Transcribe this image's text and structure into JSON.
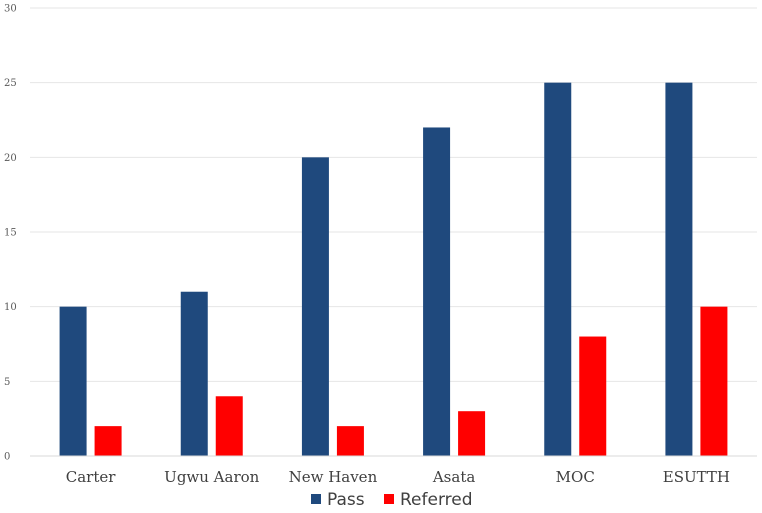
{
  "chart_data": {
    "type": "bar",
    "title": "",
    "xlabel": "",
    "ylabel": "",
    "categories": [
      "Carter",
      "Ugwu Aaron",
      "New Haven",
      "Asata",
      "MOC",
      "ESUTTH"
    ],
    "series": [
      {
        "name": "Pass",
        "color": "#1f497d",
        "values": [
          10,
          11,
          20,
          22,
          25,
          25
        ]
      },
      {
        "name": "Referred",
        "color": "#ff0000",
        "values": [
          2,
          4,
          2,
          3,
          8,
          10
        ]
      }
    ],
    "ylim": [
      0,
      30
    ],
    "yticks": [
      0,
      5,
      10,
      15,
      20,
      25,
      30
    ],
    "grid": true,
    "legend": "bottom"
  }
}
